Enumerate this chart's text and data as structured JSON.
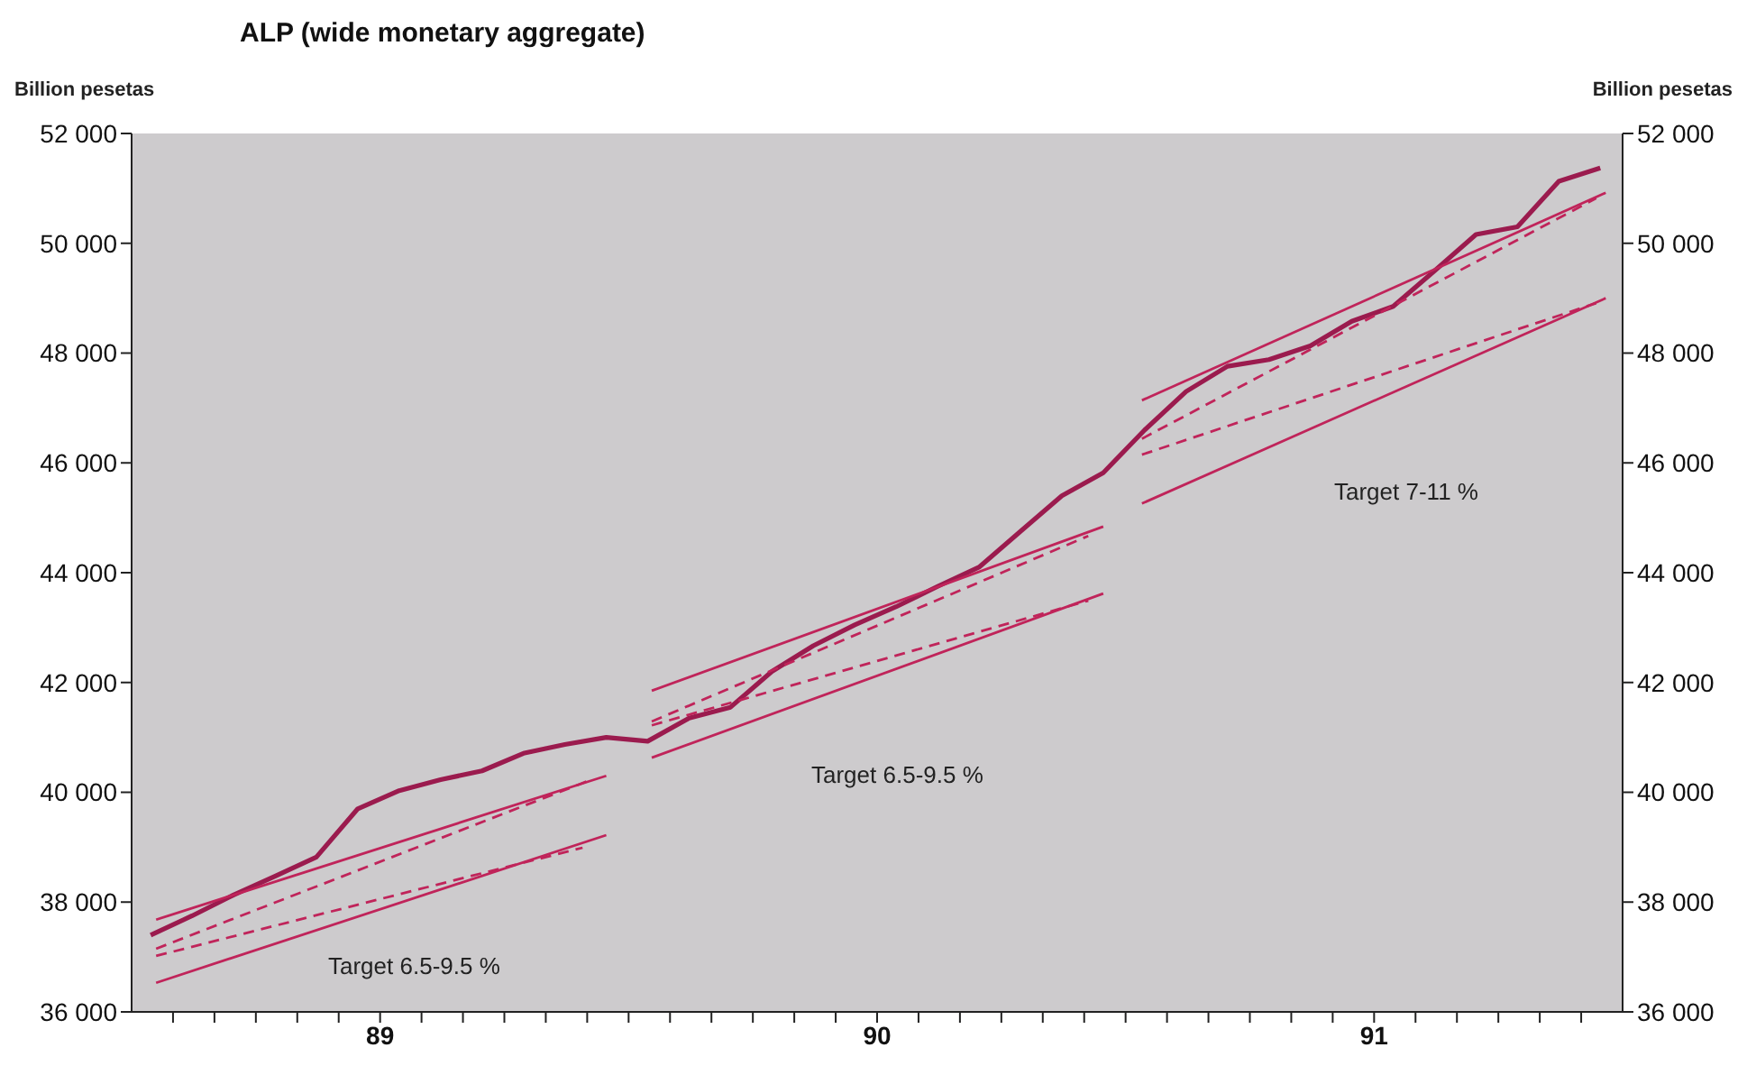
{
  "chart_data": {
    "type": "line",
    "title": "ALP (wide monetary aggregate)",
    "ylabel": "Billion pesetas",
    "y2label": "Billion pesetas",
    "xlim": [
      "1989-01",
      "1992-01"
    ],
    "xticks": [
      {
        "value": "1989-02",
        "label": null
      },
      {
        "value": "1989-03",
        "label": null
      },
      {
        "value": "1989-04",
        "label": null
      },
      {
        "value": "1989-05",
        "label": null
      },
      {
        "value": "1989-06",
        "label": null
      },
      {
        "value": "1989-07",
        "label": "89"
      },
      {
        "value": "1989-08",
        "label": null
      },
      {
        "value": "1989-09",
        "label": null
      },
      {
        "value": "1989-10",
        "label": null
      },
      {
        "value": "1989-11",
        "label": null
      },
      {
        "value": "1989-12",
        "label": null
      },
      {
        "value": "1990-01",
        "label": null
      },
      {
        "value": "1990-02",
        "label": null
      },
      {
        "value": "1990-03",
        "label": null
      },
      {
        "value": "1990-04",
        "label": null
      },
      {
        "value": "1990-05",
        "label": null
      },
      {
        "value": "1990-06",
        "label": null
      },
      {
        "value": "1990-07",
        "label": "90"
      },
      {
        "value": "1990-08",
        "label": null
      },
      {
        "value": "1990-09",
        "label": null
      },
      {
        "value": "1990-10",
        "label": null
      },
      {
        "value": "1990-11",
        "label": null
      },
      {
        "value": "1990-12",
        "label": null
      },
      {
        "value": "1991-01",
        "label": null
      },
      {
        "value": "1991-02",
        "label": null
      },
      {
        "value": "1991-03",
        "label": null
      },
      {
        "value": "1991-04",
        "label": null
      },
      {
        "value": "1991-05",
        "label": null
      },
      {
        "value": "1991-06",
        "label": null
      },
      {
        "value": "1991-07",
        "label": "91"
      },
      {
        "value": "1991-08",
        "label": null
      },
      {
        "value": "1991-09",
        "label": null
      },
      {
        "value": "1991-10",
        "label": null
      },
      {
        "value": "1991-11",
        "label": null
      },
      {
        "value": "1991-12",
        "label": null
      }
    ],
    "ylim": [
      36000,
      52000
    ],
    "yticks": [
      {
        "value": 36000,
        "label": "36 000"
      },
      {
        "value": 38000,
        "label": "38 000"
      },
      {
        "value": 40000,
        "label": "40 000"
      },
      {
        "value": 42000,
        "label": "42 000"
      },
      {
        "value": 44000,
        "label": "44 000"
      },
      {
        "value": 46000,
        "label": "46 000"
      },
      {
        "value": 48000,
        "label": "48 000"
      },
      {
        "value": 50000,
        "label": "50 000"
      },
      {
        "value": 52000,
        "label": "52 000"
      }
    ],
    "y2lim": [
      36000,
      52000
    ],
    "y2ticks": [
      {
        "value": 36000,
        "label": "36 000"
      },
      {
        "value": 38000,
        "label": "38 000"
      },
      {
        "value": 40000,
        "label": "40 000"
      },
      {
        "value": 42000,
        "label": "42 000"
      },
      {
        "value": 44000,
        "label": "44 000"
      },
      {
        "value": 46000,
        "label": "46 000"
      },
      {
        "value": 48000,
        "label": "48 000"
      },
      {
        "value": 50000,
        "label": "50 000"
      },
      {
        "value": 52000,
        "label": "52 000"
      }
    ],
    "grid": false,
    "marker": "none",
    "series": [
      {
        "color": "#9b1b4e",
        "line_style": "solid",
        "x": [
          "1989-01-15",
          "1989-02-15",
          "1989-03-15",
          "1989-04-15",
          "1989-05-15",
          "1989-06-15",
          "1989-07-15",
          "1989-08-15",
          "1989-09-15",
          "1989-10-15",
          "1989-11-15",
          "1989-12-15",
          "1990-01-15",
          "1990-02-15",
          "1990-03-15",
          "1990-04-15",
          "1990-05-15",
          "1990-06-15",
          "1990-07-15",
          "1990-08-15",
          "1990-09-15",
          "1990-10-15",
          "1990-11-15",
          "1990-12-15",
          "1991-01-15",
          "1991-02-15",
          "1991-03-15",
          "1991-04-15",
          "1991-05-15",
          "1991-06-15",
          "1991-07-15",
          "1991-08-15",
          "1991-09-15",
          "1991-10-15",
          "1991-11-15",
          "1991-12-15"
        ],
        "values": [
          37400,
          37750,
          38130,
          38470,
          38820,
          39700,
          40030,
          40230,
          40390,
          40710,
          40870,
          41000,
          40930,
          41350,
          41550,
          42200,
          42670,
          43050,
          43380,
          43750,
          44100,
          44750,
          45400,
          45820,
          46600,
          47300,
          47760,
          47880,
          48130,
          48580,
          48850,
          49500,
          50160,
          50300,
          51130,
          51370
        ]
      },
      {
        "color": "#c0245a",
        "line_style": "solid",
        "x": [
          "1989-01-19",
          "1989-12-15"
        ],
        "values": [
          37680,
          40300
        ]
      },
      {
        "color": "#c0245a",
        "line_style": "solid",
        "x": [
          "1989-01-19",
          "1989-12-15"
        ],
        "values": [
          36530,
          39220
        ]
      },
      {
        "color": "#c0245a",
        "line_style": "dashed",
        "x": [
          "1989-01-19",
          "1989-12-05"
        ],
        "values": [
          37150,
          40240
        ]
      },
      {
        "color": "#c0245a",
        "line_style": "dashed",
        "x": [
          "1989-01-19",
          "1989-11-28"
        ],
        "values": [
          37020,
          38990
        ]
      },
      {
        "color": "#c0245a",
        "line_style": "solid",
        "x": [
          "1990-01-18",
          "1990-12-15"
        ],
        "values": [
          41850,
          44840
        ]
      },
      {
        "color": "#c0245a",
        "line_style": "solid",
        "x": [
          "1990-01-18",
          "1990-12-15"
        ],
        "values": [
          40630,
          43620
        ]
      },
      {
        "color": "#c0245a",
        "line_style": "dashed",
        "x": [
          "1990-01-18",
          "1990-12-04"
        ],
        "values": [
          41290,
          44670
        ]
      },
      {
        "color": "#c0245a",
        "line_style": "dashed",
        "x": [
          "1990-01-18",
          "1990-12-04"
        ],
        "values": [
          41220,
          43490
        ]
      },
      {
        "color": "#c0245a",
        "line_style": "solid",
        "x": [
          "1991-01-13",
          "1991-12-19"
        ],
        "values": [
          47140,
          50920
        ]
      },
      {
        "color": "#c0245a",
        "line_style": "solid",
        "x": [
          "1991-01-13",
          "1991-12-19"
        ],
        "values": [
          45260,
          49000
        ]
      },
      {
        "color": "#c0245a",
        "line_style": "dashed",
        "x": [
          "1991-01-13",
          "1991-12-12"
        ],
        "values": [
          46440,
          50820
        ]
      },
      {
        "color": "#c0245a",
        "line_style": "dashed",
        "x": [
          "1991-01-13",
          "1991-12-12"
        ],
        "values": [
          46150,
          48910
        ]
      }
    ],
    "annotations": [
      "Target 6.5-9.5 %",
      "Target 6.5-9.5 %",
      "Target 7-11 %"
    ]
  }
}
